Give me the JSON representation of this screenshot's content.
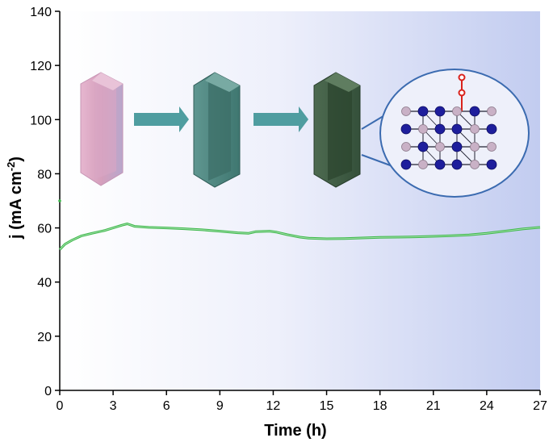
{
  "chart_data": {
    "type": "line",
    "xlabel": "Time (h)",
    "ylabel": {
      "main": "j (mA cm",
      "sup": "-2",
      "close": ")"
    },
    "xlim": [
      0,
      27
    ],
    "ylim": [
      0,
      140
    ],
    "xticks": [
      0,
      3,
      6,
      9,
      12,
      15,
      18,
      21,
      24,
      27
    ],
    "yticks": [
      0,
      20,
      40,
      60,
      80,
      100,
      120,
      140
    ],
    "grid": false,
    "background": "gradient white to light blue (left to right)",
    "series": [
      {
        "color": "#3cb84a",
        "x": [
          0,
          0.3,
          0.7,
          1.2,
          1.8,
          2.5,
          3.0,
          3.5,
          3.8,
          4.2,
          5,
          6,
          7,
          8,
          9,
          10,
          10.6,
          11,
          11.8,
          12.2,
          12.8,
          13.5,
          14,
          15,
          16,
          17,
          18,
          19,
          20,
          21,
          22,
          23,
          24,
          25,
          26,
          27
        ],
        "y": [
          52,
          54,
          55.5,
          57,
          58,
          59,
          60,
          61,
          61.5,
          60.6,
          60.2,
          60.0,
          59.7,
          59.3,
          58.8,
          58.2,
          58.0,
          58.6,
          58.8,
          58.4,
          57.5,
          56.6,
          56.2,
          56.0,
          56.1,
          56.3,
          56.5,
          56.6,
          56.7,
          56.9,
          57.1,
          57.4,
          58.0,
          58.8,
          59.6,
          60.2
        ]
      }
    ],
    "annotations": [
      {
        "type": "marker",
        "x": 0,
        "y": 70,
        "color": "#3cb84a"
      }
    ]
  },
  "inset": {
    "crystals": [
      "pink",
      "teal",
      "dark-green"
    ],
    "colors": {
      "pink": "#d8a2c0",
      "teal": "#4e8a83",
      "dark_green": "#3f5a43",
      "arrow": "#4f9da0",
      "circle": "#3b6bb0",
      "atom_blue": "#1e1e9c",
      "atom_pink": "#c9b1c6",
      "atom_red": "#d9221c"
    }
  }
}
